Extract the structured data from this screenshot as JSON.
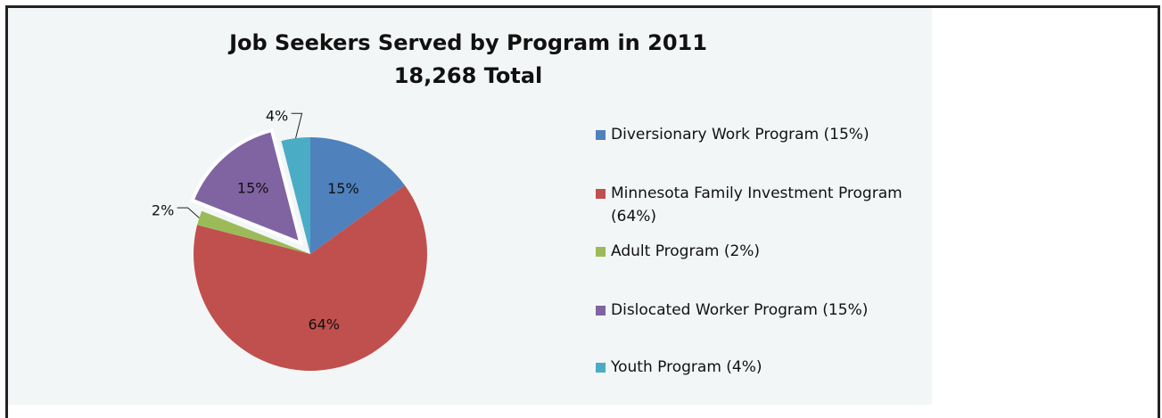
{
  "chart_data": {
    "type": "pie",
    "title": "Job Seekers Served by Program in 2011",
    "subtitle": "18,268 Total",
    "legend_position": "right",
    "slices": [
      {
        "label": "Diversionary Work Program (15%)",
        "value": 15,
        "data_label": "15%",
        "color": "#4f81bd",
        "exploded": false
      },
      {
        "label": "Minnesota Family Investment Program (64%)",
        "value": 64,
        "data_label": "64%",
        "color": "#c0504d",
        "exploded": false
      },
      {
        "label": "Adult Program (2%)",
        "value": 2,
        "data_label": "2%",
        "color": "#9bbb59",
        "exploded": false
      },
      {
        "label": "Dislocated Worker Program (15%)",
        "value": 15,
        "data_label": "15%",
        "color": "#8064a2",
        "exploded": true
      },
      {
        "label": "Youth Program (4%)",
        "value": 4,
        "data_label": "4%",
        "color": "#4bacc6",
        "exploded": false
      }
    ]
  }
}
